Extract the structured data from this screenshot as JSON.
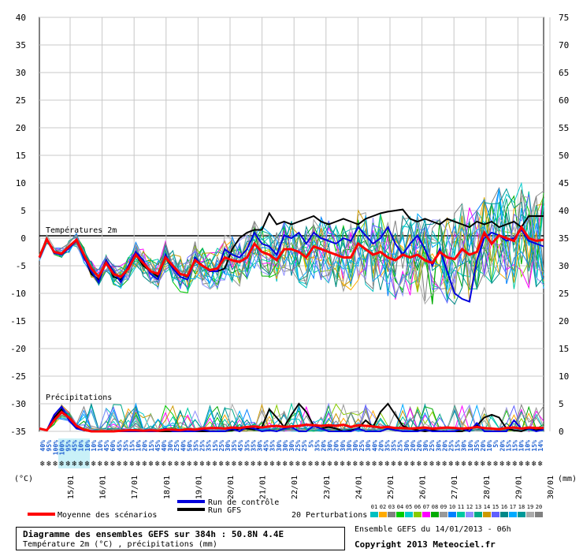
{
  "chart_data": {
    "type": "line",
    "title": "Diagramme des ensembles GEFS sur 384h : 50.8N 4.4E",
    "subtitle": "Température 2m (°C) , précipitations (mm)",
    "run_info": "Ensemble GEFS du 14/01/2013 - 06h",
    "copyright": "Copyright 2013 Meteociel.fr",
    "temp_panel_label": "Températures 2m",
    "precip_panel_label": "Précipitations",
    "left_unit": "(°C)",
    "right_unit": "(mm)",
    "left_ticks": [
      40,
      35,
      30,
      25,
      20,
      15,
      10,
      5,
      0,
      -5,
      -10,
      -15,
      -20,
      -25,
      -30,
      -35
    ],
    "right_ticks": [
      75,
      70,
      65,
      60,
      55,
      50,
      45,
      40,
      35,
      30,
      25,
      20,
      15,
      10,
      5,
      0
    ],
    "ylim_temp": [
      -35,
      40
    ],
    "ylim_precip": [
      0,
      75
    ],
    "x_dates": [
      "15/01",
      "16/01",
      "17/01",
      "18/01",
      "19/01",
      "20/01",
      "21/01",
      "22/01",
      "23/01",
      "24/01",
      "25/01",
      "26/01",
      "27/01",
      "28/01",
      "29/01",
      "30/01"
    ],
    "precip_probability": [
      "40%",
      "95%",
      "100%",
      "100%",
      "95%",
      "45%",
      "10%",
      "10%",
      "10%",
      "10%",
      "45%",
      "60%",
      "45%",
      "35%",
      "15%",
      "10%",
      "20%",
      "15%",
      "45%",
      "40%",
      "30%",
      "25%",
      "40%",
      "50%",
      "35%",
      "25%",
      "35%",
      "15%",
      "25%",
      "30%",
      "35%",
      "45%",
      "35%",
      "35%",
      "30%",
      "45%",
      "35%",
      "30%",
      "30%",
      "30%",
      "25%",
      "25%",
      "5%",
      "35%",
      "20%",
      "30%",
      "20%",
      "30%",
      "30%",
      "30%",
      "25%",
      "30%",
      "40%",
      "20%",
      "35%",
      "35%",
      "25%",
      "30%",
      "20%",
      "20%",
      "30%",
      "25%",
      "30%",
      "20%",
      "25%",
      "15%",
      "30%",
      "10%",
      "35%",
      "20%",
      "10%",
      "5%",
      "20%",
      "15%",
      "15%",
      "10%",
      "10%",
      "15%",
      "14%"
    ],
    "legend": {
      "mean": "Moyenne des scénarios",
      "control": "Run de contrôle",
      "gfs": "Run GFS",
      "perturbations": "20 Perturbations",
      "perturbation_ids": [
        "01",
        "02",
        "03",
        "04",
        "05",
        "06",
        "07",
        "08",
        "09",
        "10",
        "11",
        "12",
        "13",
        "14",
        "15",
        "16",
        "17",
        "18",
        "19",
        "20"
      ]
    },
    "colors": {
      "mean": "#ff0000",
      "control": "#0000dd",
      "gfs": "#000000",
      "perturbations": [
        "#00c0c0",
        "#ffaa00",
        "#808080",
        "#00cc00",
        "#00cccc",
        "#88cc00",
        "#ff00ff",
        "#00aa00",
        "#999999",
        "#0080ff",
        "#00c8a0",
        "#9090ff",
        "#00aa88",
        "#cc9900",
        "#6060ff",
        "#008888",
        "#00aaff",
        "#009999",
        "#aaaaaa",
        "#808080"
      ]
    },
    "series": [
      {
        "name": "Moyenne des scénarios",
        "temp": [
          -3.5,
          -0.2,
          -2.5,
          -2.8,
          -1.5,
          -0.3,
          -3.0,
          -5.5,
          -7.0,
          -4.5,
          -6.5,
          -7.0,
          -5.5,
          -3.0,
          -4.5,
          -6.0,
          -6.5,
          -3.5,
          -5.0,
          -6.5,
          -6.8,
          -4.0,
          -5.0,
          -5.8,
          -5.5,
          -3.5,
          -4.0,
          -4.3,
          -3.5,
          -1.0,
          -2.5,
          -3.0,
          -4.0,
          -2.0,
          -2.0,
          -2.5,
          -3.5,
          -1.5,
          -2.0,
          -2.5,
          -3.0,
          -3.5,
          -3.5,
          -1.0,
          -2.0,
          -3.0,
          -2.5,
          -3.5,
          -4.0,
          -3.0,
          -3.5,
          -3.0,
          -4.0,
          -4.5,
          -2.5,
          -3.5,
          -3.8,
          -2.0,
          -3.0,
          -2.5,
          1.0,
          -1.0,
          0.5,
          0.0,
          -0.5,
          2.0,
          0.0,
          -0.5,
          -0.3
        ],
        "precip": [
          0.5,
          0.2,
          2.0,
          3.5,
          2.5,
          1.0,
          0.3,
          0,
          0,
          0,
          0,
          0.1,
          0.2,
          0.2,
          0.1,
          0.2,
          0.1,
          0.3,
          0.3,
          0.2,
          0.4,
          0.3,
          0.5,
          0.6,
          0.6,
          0.5,
          0.7,
          0.6,
          0.8,
          0.9,
          0.7,
          0.9,
          1.0,
          0.8,
          0.9,
          1.0,
          1.2,
          1.1,
          1.0,
          1.1,
          1.0,
          1.2,
          0.8,
          1.1,
          1.0,
          0.9,
          0.7,
          0.8,
          0.6,
          0.6,
          0.5,
          0.6,
          0.7,
          0.5,
          0.6,
          0.7,
          0.6,
          0.5,
          0.6,
          0.8,
          0.6,
          0.5,
          0.4,
          0.6,
          0.7,
          0.5,
          0.7,
          0.6,
          0.6
        ]
      },
      {
        "name": "Run de contrôle",
        "temp": [
          -3.5,
          -0.3,
          -2.7,
          -3.0,
          -1.8,
          -0.5,
          -3.5,
          -6.0,
          -8.0,
          -4.0,
          -6.0,
          -8.0,
          -5.0,
          -2.5,
          -4.0,
          -6.5,
          -7.5,
          -3.0,
          -5.5,
          -7.0,
          -7.5,
          -3.5,
          -5.0,
          -6.0,
          -6.0,
          -2.0,
          -3.0,
          -3.5,
          -2.0,
          1.0,
          -1.0,
          -1.5,
          -3.0,
          0.5,
          0.0,
          1.0,
          -1.0,
          1.0,
          0.0,
          -0.5,
          -1.0,
          0.0,
          -0.5,
          2.0,
          0.5,
          -1.0,
          0.0,
          2.0,
          -1.0,
          -3.0,
          -1.0,
          0.5,
          -2.0,
          -5.0,
          -2.0,
          -6.0,
          -10.0,
          -11.0,
          -11.5,
          -4.0,
          0.0,
          1.0,
          0.5,
          -0.5,
          0.0,
          1.5,
          -0.5,
          -1.0,
          -1.5
        ],
        "precip": [
          0.5,
          0.2,
          3.0,
          4.5,
          2.0,
          0.5,
          0.2,
          0,
          0,
          0,
          0,
          0,
          0,
          0,
          0,
          0,
          0,
          0.5,
          0,
          0,
          0,
          0,
          0.3,
          0,
          0,
          0,
          0.5,
          0,
          0.8,
          0.5,
          0,
          0.2,
          0,
          0.5,
          0.8,
          0,
          0,
          1.0,
          0.5,
          0,
          0,
          0,
          0,
          0.5,
          0,
          0,
          0,
          0.5,
          0.2,
          0,
          0,
          0,
          0.3,
          0,
          0,
          0,
          0,
          0.5,
          0,
          1.5,
          0,
          0,
          0,
          0,
          2.0,
          0.5,
          0.5,
          0,
          0.3
        ]
      },
      {
        "name": "Run GFS",
        "temp": [
          -3.5,
          -0.2,
          -2.5,
          -2.8,
          -1.5,
          -0.3,
          -3.2,
          -6.5,
          -7.5,
          -4.0,
          -7.0,
          -7.5,
          -5.5,
          -3.0,
          -5.0,
          -6.0,
          -7.0,
          -3.5,
          -5.5,
          -6.5,
          -7.0,
          -4.0,
          -5.0,
          -6.0,
          -6.0,
          -5.5,
          -2.0,
          0.0,
          1.0,
          1.5,
          1.5,
          4.5,
          2.5,
          3.0,
          2.5,
          3.0,
          3.5,
          4.0,
          3.0,
          2.5,
          3.0,
          3.5,
          3.0,
          2.5,
          3.5,
          4.0,
          4.5,
          4.8,
          5.0,
          5.2,
          3.5,
          3.0,
          3.5,
          3.0,
          2.5,
          3.5,
          3.0,
          2.5,
          2.0,
          3.0,
          2.5,
          3.0,
          2.0,
          2.5,
          3.0,
          2.0,
          4.0,
          4.0,
          4.0
        ],
        "precip": [
          0.5,
          0.2,
          2.5,
          4.0,
          2.5,
          0.8,
          0.2,
          0,
          0,
          0,
          0,
          0,
          0,
          0,
          0,
          0,
          0,
          0,
          0,
          0,
          0,
          0,
          0,
          0,
          0,
          0,
          0.2,
          0.5,
          0.5,
          0.3,
          0.8,
          4.0,
          2.5,
          0.8,
          3.0,
          5.0,
          3.5,
          1.0,
          0.5,
          0.8,
          0.5,
          0,
          0.2,
          0.5,
          2.0,
          0.8,
          3.5,
          5.0,
          3.0,
          1.0,
          0.5,
          0.2,
          0,
          0.2,
          0,
          0,
          0,
          0,
          0.5,
          1.0,
          2.5,
          3.0,
          2.5,
          0.5,
          0.2,
          0,
          0.5,
          0.2,
          0.5
        ]
      }
    ]
  }
}
